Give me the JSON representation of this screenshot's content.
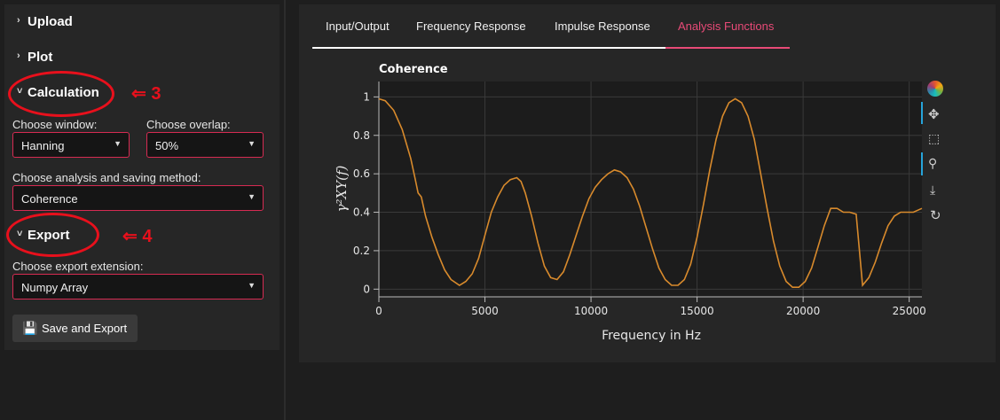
{
  "sidebar": {
    "sections": {
      "upload": "Upload",
      "plot": "Plot",
      "calculation": "Calculation",
      "export": "Export"
    },
    "window": {
      "label": "Choose window:",
      "value": "Hanning"
    },
    "overlap": {
      "label": "Choose overlap:",
      "value": "50%"
    },
    "method": {
      "label": "Choose analysis and saving method:",
      "value": "Coherence"
    },
    "extension": {
      "label": "Choose export extension:",
      "value": "Numpy Array"
    },
    "save_button": "Save and Export",
    "annotations": {
      "calc": "⇐ 3",
      "export": "⇐ 4"
    }
  },
  "tabs": [
    "Input/Output",
    "Frequency Response",
    "Impulse Response",
    "Analysis Functions"
  ],
  "active_tab": 3,
  "toolbar": [
    "bokeh-logo-icon",
    "pan-icon",
    "box-zoom-icon",
    "wheel-zoom-icon",
    "save-icon",
    "reset-icon"
  ],
  "colors": {
    "accent": "#e84a77",
    "line": "#d88a2c",
    "select_border": "#d62b52",
    "annotation": "#e8101c"
  },
  "chart_data": {
    "type": "line",
    "title": "Coherence",
    "xlabel": "Frequency in Hz",
    "ylabel": "γ²XY(f)",
    "xlim": [
      0,
      25600
    ],
    "ylim": [
      -0.04,
      1.08
    ],
    "xticks": [
      0,
      5000,
      10000,
      15000,
      20000,
      25000
    ],
    "yticks": [
      0,
      0.2,
      0.4,
      0.6,
      0.8,
      1
    ],
    "grid": true,
    "series": [
      {
        "x": [
          0,
          300,
          700,
          1100,
          1500,
          1700,
          1850,
          2000,
          2200,
          2500,
          2800,
          3100,
          3400,
          3800,
          4100,
          4400,
          4700,
          5000,
          5300,
          5600,
          5900,
          6200,
          6500,
          6700,
          6900,
          7200,
          7500,
          7800,
          8100,
          8400,
          8700,
          9000,
          9300,
          9600,
          9900,
          10200,
          10500,
          10800,
          11100,
          11400,
          11700,
          12000,
          12300,
          12600,
          12900,
          13200,
          13500,
          13800,
          14100,
          14400,
          14700,
          15000,
          15300,
          15600,
          15900,
          16200,
          16500,
          16800,
          17100,
          17400,
          17700,
          18000,
          18300,
          18600,
          18900,
          19200,
          19500,
          19800,
          20100,
          20400,
          20700,
          21000,
          21300,
          21600,
          21900,
          22200,
          22500,
          22800,
          23100,
          23400,
          23700,
          24000,
          24300,
          24600,
          24900,
          25200,
          25600
        ],
        "y": [
          0.99,
          0.98,
          0.93,
          0.83,
          0.68,
          0.58,
          0.5,
          0.48,
          0.38,
          0.27,
          0.18,
          0.1,
          0.05,
          0.02,
          0.04,
          0.08,
          0.16,
          0.28,
          0.4,
          0.48,
          0.54,
          0.57,
          0.58,
          0.56,
          0.5,
          0.38,
          0.24,
          0.12,
          0.06,
          0.05,
          0.09,
          0.18,
          0.28,
          0.38,
          0.47,
          0.53,
          0.57,
          0.6,
          0.62,
          0.61,
          0.58,
          0.52,
          0.43,
          0.32,
          0.21,
          0.11,
          0.05,
          0.02,
          0.02,
          0.05,
          0.13,
          0.27,
          0.44,
          0.62,
          0.78,
          0.9,
          0.97,
          0.99,
          0.97,
          0.9,
          0.78,
          0.6,
          0.42,
          0.25,
          0.12,
          0.04,
          0.01,
          0.01,
          0.04,
          0.11,
          0.22,
          0.33,
          0.42,
          0.42,
          0.4,
          0.4,
          0.39,
          0.02,
          0.06,
          0.14,
          0.24,
          0.33,
          0.38,
          0.4,
          0.4,
          0.4,
          0.42
        ]
      }
    ]
  }
}
